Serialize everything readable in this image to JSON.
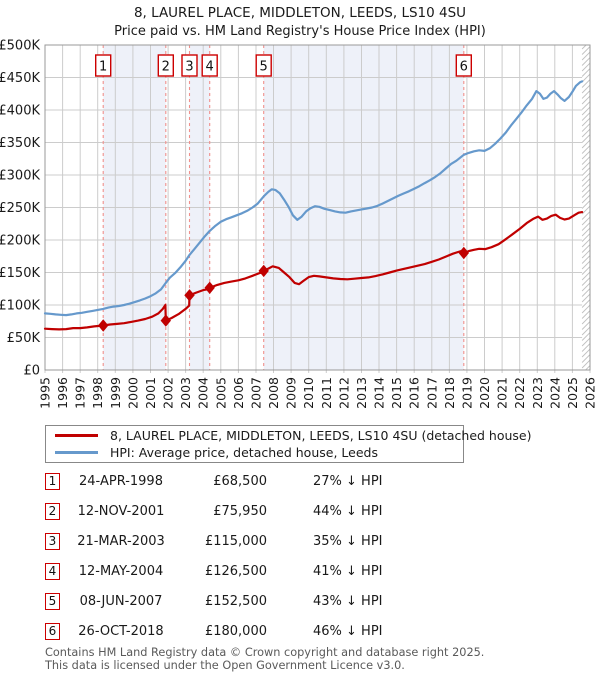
{
  "title": {
    "line1": "8, LAUREL PLACE, MIDDLETON, LEEDS, LS10 4SU",
    "line2": "Price paid vs. HM Land Registry's House Price Index (HPI)"
  },
  "legend": {
    "entries": [
      {
        "label": "8, LAUREL PLACE, MIDDLETON, LEEDS, LS10 4SU (detached house)",
        "color": "#c00000"
      },
      {
        "label": "HPI: Average price, detached house, Leeds",
        "color": "#6699cc"
      }
    ]
  },
  "chart_data": {
    "type": "line",
    "title": "Price paid vs. HM Land Registry's House Price Index (HPI)",
    "x_axis": {
      "min": 1995,
      "max": 2026,
      "tick_step": 1
    },
    "y_axis": {
      "min": 0,
      "max": 500,
      "tick_step": 50,
      "unit": "£K",
      "tick_labels": [
        "£0",
        "£50K",
        "£100K",
        "£150K",
        "£200K",
        "£250K",
        "£300K",
        "£350K",
        "£400K",
        "£450K",
        "£500K"
      ]
    },
    "grid": true,
    "legend_position": "below",
    "colors": {
      "property_line": "#c00000",
      "hpi_line": "#6699cc",
      "band_fill": "#eef1f9",
      "grid": "#cccccc",
      "plot_border": "#999999",
      "sale_dash": "#f0908c",
      "hatch": "#c0c0c0",
      "flag_border": "#cc0000"
    },
    "ownership_bands_years": [
      [
        1998.31,
        2001.87
      ],
      [
        2003.22,
        2004.37
      ],
      [
        2007.44,
        2018.82
      ]
    ],
    "future_hatch_start_year": 2025.55,
    "sales": [
      {
        "label": "1",
        "year": 1998.31,
        "price_gbpk": 68.5
      },
      {
        "label": "2",
        "year": 2001.87,
        "price_gbpk": 75.95
      },
      {
        "label": "3",
        "year": 2003.22,
        "price_gbpk": 115
      },
      {
        "label": "4",
        "year": 2004.37,
        "price_gbpk": 126.5
      },
      {
        "label": "5",
        "year": 2007.44,
        "price_gbpk": 152.5
      },
      {
        "label": "6",
        "year": 2018.82,
        "price_gbpk": 180
      }
    ],
    "series": [
      {
        "name": "HPI: Average price, detached house, Leeds",
        "color": "#6699cc",
        "points_year_gbpk": [
          [
            1995.0,
            87
          ],
          [
            1995.3,
            86.5
          ],
          [
            1995.6,
            85.5
          ],
          [
            1995.9,
            85
          ],
          [
            1996.2,
            84.5
          ],
          [
            1996.5,
            85.5
          ],
          [
            1996.8,
            87
          ],
          [
            1997.1,
            88
          ],
          [
            1997.4,
            89.5
          ],
          [
            1997.7,
            91
          ],
          [
            1998.0,
            92.5
          ],
          [
            1998.31,
            94
          ],
          [
            1998.6,
            96
          ],
          [
            1998.9,
            97.5
          ],
          [
            1999.2,
            98.5
          ],
          [
            1999.5,
            100
          ],
          [
            1999.8,
            102
          ],
          [
            2000.1,
            104.5
          ],
          [
            2000.4,
            107
          ],
          [
            2000.7,
            110
          ],
          [
            2001.0,
            113.5
          ],
          [
            2001.3,
            118
          ],
          [
            2001.6,
            124
          ],
          [
            2001.87,
            134
          ],
          [
            2002.1,
            142
          ],
          [
            2002.4,
            149
          ],
          [
            2002.7,
            158
          ],
          [
            2003.0,
            168
          ],
          [
            2003.22,
            177
          ],
          [
            2003.5,
            186
          ],
          [
            2003.8,
            196
          ],
          [
            2004.1,
            206
          ],
          [
            2004.37,
            214
          ],
          [
            2004.7,
            222
          ],
          [
            2005.0,
            228
          ],
          [
            2005.3,
            232
          ],
          [
            2005.6,
            235
          ],
          [
            2005.9,
            238
          ],
          [
            2006.2,
            241
          ],
          [
            2006.5,
            245
          ],
          [
            2006.8,
            250
          ],
          [
            2007.1,
            256
          ],
          [
            2007.44,
            267
          ],
          [
            2007.7,
            274
          ],
          [
            2007.9,
            278
          ],
          [
            2008.1,
            277
          ],
          [
            2008.35,
            272
          ],
          [
            2008.6,
            262
          ],
          [
            2008.85,
            251
          ],
          [
            2009.1,
            238
          ],
          [
            2009.35,
            231
          ],
          [
            2009.6,
            236
          ],
          [
            2009.85,
            244
          ],
          [
            2010.1,
            249
          ],
          [
            2010.35,
            252
          ],
          [
            2010.6,
            251
          ],
          [
            2010.9,
            248
          ],
          [
            2011.2,
            246
          ],
          [
            2011.5,
            244
          ],
          [
            2011.8,
            242.5
          ],
          [
            2012.1,
            242
          ],
          [
            2012.4,
            244
          ],
          [
            2012.7,
            245.5
          ],
          [
            2013.0,
            247
          ],
          [
            2013.3,
            248.5
          ],
          [
            2013.6,
            250
          ],
          [
            2013.9,
            252.5
          ],
          [
            2014.2,
            256
          ],
          [
            2014.5,
            260
          ],
          [
            2014.8,
            264
          ],
          [
            2015.1,
            268
          ],
          [
            2015.4,
            271.5
          ],
          [
            2015.7,
            275
          ],
          [
            2016.0,
            279
          ],
          [
            2016.3,
            283
          ],
          [
            2016.6,
            287.5
          ],
          [
            2016.9,
            292
          ],
          [
            2017.2,
            297
          ],
          [
            2017.5,
            303
          ],
          [
            2017.8,
            310
          ],
          [
            2018.1,
            317
          ],
          [
            2018.4,
            322
          ],
          [
            2018.82,
            331
          ],
          [
            2019.1,
            334
          ],
          [
            2019.4,
            336.5
          ],
          [
            2019.7,
            338
          ],
          [
            2020.0,
            337
          ],
          [
            2020.3,
            341
          ],
          [
            2020.6,
            348
          ],
          [
            2020.9,
            356
          ],
          [
            2021.2,
            365
          ],
          [
            2021.5,
            376
          ],
          [
            2021.8,
            386
          ],
          [
            2022.1,
            396
          ],
          [
            2022.4,
            407
          ],
          [
            2022.7,
            417
          ],
          [
            2022.95,
            429
          ],
          [
            2023.15,
            425
          ],
          [
            2023.35,
            417
          ],
          [
            2023.55,
            419
          ],
          [
            2023.75,
            425
          ],
          [
            2023.95,
            429
          ],
          [
            2024.15,
            424
          ],
          [
            2024.35,
            418
          ],
          [
            2024.55,
            414
          ],
          [
            2024.8,
            420
          ],
          [
            2025.0,
            428
          ],
          [
            2025.2,
            437
          ],
          [
            2025.45,
            443
          ],
          [
            2025.55,
            444
          ]
        ]
      },
      {
        "name": "8, LAUREL PLACE, MIDDLETON, LEEDS, LS10 4SU (detached house)",
        "color": "#c00000",
        "points_year_gbpk": [
          [
            1995.0,
            63.5
          ],
          [
            1995.4,
            63
          ],
          [
            1995.8,
            62.5
          ],
          [
            1996.2,
            63
          ],
          [
            1996.6,
            64.5
          ],
          [
            1997.0,
            64.5
          ],
          [
            1997.4,
            65.5
          ],
          [
            1997.8,
            67
          ],
          [
            1998.31,
            68.5
          ],
          [
            1998.7,
            70
          ],
          [
            1999.1,
            71
          ],
          [
            1999.5,
            72
          ],
          [
            1999.9,
            74
          ],
          [
            2000.3,
            76
          ],
          [
            2000.7,
            78.5
          ],
          [
            2001.1,
            82
          ],
          [
            2001.45,
            87
          ],
          [
            2001.7,
            94
          ],
          [
            2001.85,
            100
          ],
          [
            2001.87,
            76
          ],
          [
            2002.2,
            80
          ],
          [
            2002.6,
            86
          ],
          [
            2003.0,
            94
          ],
          [
            2003.2,
            99
          ],
          [
            2003.22,
            115
          ],
          [
            2003.6,
            119
          ],
          [
            2004.0,
            123
          ],
          [
            2004.35,
            124.5
          ],
          [
            2004.37,
            126.5
          ],
          [
            2004.8,
            131
          ],
          [
            2005.2,
            134
          ],
          [
            2005.6,
            136
          ],
          [
            2006.0,
            138
          ],
          [
            2006.4,
            141
          ],
          [
            2006.8,
            145
          ],
          [
            2007.2,
            149
          ],
          [
            2007.42,
            150.5
          ],
          [
            2007.44,
            152.5
          ],
          [
            2007.7,
            156
          ],
          [
            2007.95,
            159.5
          ],
          [
            2008.3,
            157
          ],
          [
            2008.6,
            150
          ],
          [
            2008.9,
            143
          ],
          [
            2009.2,
            134
          ],
          [
            2009.45,
            132
          ],
          [
            2009.7,
            137
          ],
          [
            2010.0,
            143
          ],
          [
            2010.3,
            145
          ],
          [
            2010.6,
            144
          ],
          [
            2011.0,
            142.5
          ],
          [
            2011.4,
            141
          ],
          [
            2011.8,
            140
          ],
          [
            2012.2,
            139.5
          ],
          [
            2012.6,
            140.5
          ],
          [
            2013.0,
            141.5
          ],
          [
            2013.4,
            142.5
          ],
          [
            2013.8,
            144.5
          ],
          [
            2014.2,
            147
          ],
          [
            2014.6,
            150
          ],
          [
            2015.0,
            153
          ],
          [
            2015.4,
            155.5
          ],
          [
            2015.8,
            158
          ],
          [
            2016.2,
            160.5
          ],
          [
            2016.6,
            163
          ],
          [
            2017.0,
            166.5
          ],
          [
            2017.4,
            170
          ],
          [
            2017.8,
            174.5
          ],
          [
            2018.2,
            179
          ],
          [
            2018.5,
            181.5
          ],
          [
            2018.8,
            184
          ],
          [
            2018.82,
            180
          ],
          [
            2019.1,
            183
          ],
          [
            2019.4,
            185
          ],
          [
            2019.7,
            186.5
          ],
          [
            2020.05,
            186
          ],
          [
            2020.4,
            189
          ],
          [
            2020.8,
            193.5
          ],
          [
            2021.2,
            201
          ],
          [
            2021.6,
            209
          ],
          [
            2022.0,
            217
          ],
          [
            2022.4,
            226
          ],
          [
            2022.8,
            233
          ],
          [
            2023.05,
            236
          ],
          [
            2023.3,
            231
          ],
          [
            2023.55,
            233
          ],
          [
            2023.8,
            237
          ],
          [
            2024.05,
            239
          ],
          [
            2024.3,
            234
          ],
          [
            2024.55,
            231.5
          ],
          [
            2024.8,
            233
          ],
          [
            2025.1,
            238
          ],
          [
            2025.35,
            242
          ],
          [
            2025.55,
            243
          ]
        ]
      }
    ]
  },
  "table": {
    "rows": [
      {
        "num": "1",
        "date": "24-APR-1998",
        "price": "£68,500",
        "vs_hpi": "27% ↓ HPI"
      },
      {
        "num": "2",
        "date": "12-NOV-2001",
        "price": "£75,950",
        "vs_hpi": "44% ↓ HPI"
      },
      {
        "num": "3",
        "date": "21-MAR-2003",
        "price": "£115,000",
        "vs_hpi": "35% ↓ HPI"
      },
      {
        "num": "4",
        "date": "12-MAY-2004",
        "price": "£126,500",
        "vs_hpi": "41% ↓ HPI"
      },
      {
        "num": "5",
        "date": "08-JUN-2007",
        "price": "£152,500",
        "vs_hpi": "43% ↓ HPI"
      },
      {
        "num": "6",
        "date": "26-OCT-2018",
        "price": "£180,000",
        "vs_hpi": "46% ↓ HPI"
      }
    ]
  },
  "footer": {
    "line1": "Contains HM Land Registry data © Crown copyright and database right 2025.",
    "line2": "This data is licensed under the Open Government Licence v3.0."
  }
}
